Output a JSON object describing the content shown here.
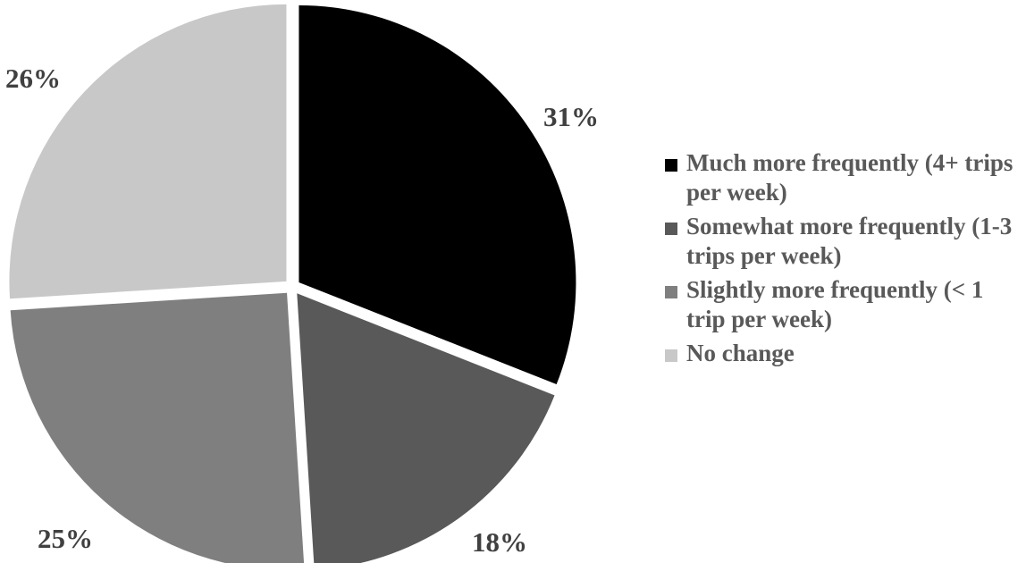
{
  "chart_data": {
    "type": "pie",
    "title": "",
    "start_angle_deg": 0,
    "direction": "clockwise",
    "slices": [
      {
        "label": "Much more frequently (4+ trips per week)",
        "value": 31,
        "value_label": "31%",
        "color": "#000000"
      },
      {
        "label": "Somewhat more frequently (1-3 trips per week)",
        "value": 18,
        "value_label": "18%",
        "color": "#595959"
      },
      {
        "label": "Slightly more frequently (< 1 trip per week)",
        "value": 25,
        "value_label": "25%",
        "color": "#7f7f7f"
      },
      {
        "label": "No change",
        "value": 26,
        "value_label": "26%",
        "color": "#c8c8c8"
      }
    ],
    "legend_position": "right"
  }
}
